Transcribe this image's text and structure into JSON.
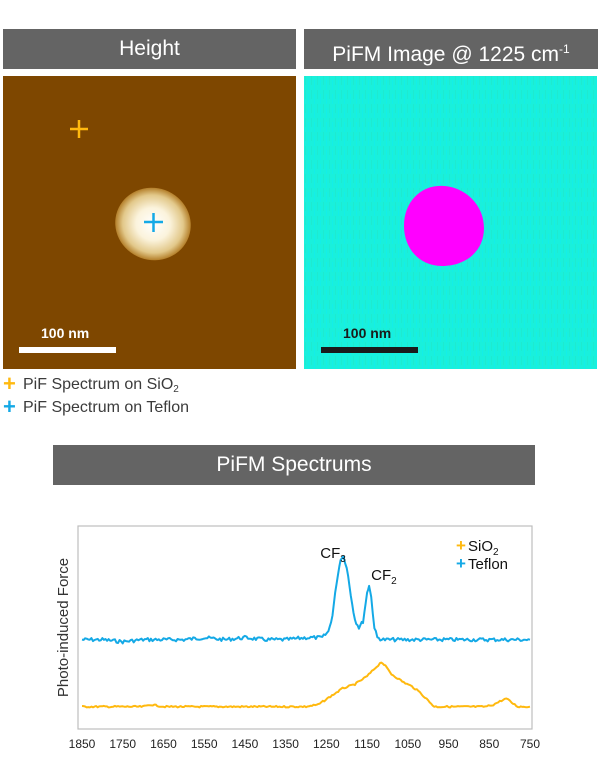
{
  "panels": {
    "height": {
      "title": "Height",
      "scale_label": "100 nm",
      "colors": {
        "background": "#7e4700",
        "feature": "#fffbe6"
      }
    },
    "pifm": {
      "title_main": "PiFM Image @ 1225 cm",
      "title_sup": "-1",
      "scale_label": "100 nm",
      "colors": {
        "background": "#19f0dc",
        "feature": "#ff00ff"
      }
    }
  },
  "markers": [
    {
      "label_main": "PiF Spectrum on SiO",
      "label_sub": "2",
      "color": "#ffb90f",
      "glyph": "+"
    },
    {
      "label_main": "PiF Spectrum on Teflon",
      "label_sub": "",
      "color": "#14a9e6",
      "glyph": "+"
    }
  ],
  "spectrum_header": "PiFM Spectrums",
  "chart_data": {
    "type": "line",
    "title": "PiFM Spectrums",
    "xlabel": "",
    "ylabel": "Photo-induced Force",
    "xlim": [
      1850,
      750
    ],
    "x_reversed": true,
    "ylim": [
      0,
      1
    ],
    "x_ticks": [
      1850,
      1750,
      1650,
      1550,
      1450,
      1350,
      1250,
      1150,
      1050,
      950,
      850,
      750
    ],
    "grid": false,
    "legend": {
      "placement": "top-right",
      "entries": [
        {
          "name_main": "SiO",
          "name_sub": "2",
          "color": "#ffb90f"
        },
        {
          "name_main": "Teflon",
          "name_sub": "",
          "color": "#14a9e6"
        }
      ]
    },
    "annotations": [
      {
        "text_main": "CF",
        "text_sub": "3",
        "x": 1211
      },
      {
        "text_main": "CF",
        "text_sub": "2",
        "x": 1145
      }
    ],
    "series": [
      {
        "name": "Teflon",
        "color": "#14a9e6",
        "points": [
          [
            1850,
            0.44
          ],
          [
            1800,
            0.44
          ],
          [
            1750,
            0.43
          ],
          [
            1700,
            0.44
          ],
          [
            1650,
            0.44
          ],
          [
            1600,
            0.44
          ],
          [
            1550,
            0.45
          ],
          [
            1500,
            0.44
          ],
          [
            1450,
            0.45
          ],
          [
            1400,
            0.44
          ],
          [
            1350,
            0.44
          ],
          [
            1300,
            0.45
          ],
          [
            1260,
            0.45
          ],
          [
            1245,
            0.48
          ],
          [
            1235,
            0.56
          ],
          [
            1225,
            0.72
          ],
          [
            1215,
            0.84
          ],
          [
            1208,
            0.85
          ],
          [
            1200,
            0.8
          ],
          [
            1190,
            0.66
          ],
          [
            1180,
            0.54
          ],
          [
            1170,
            0.5
          ],
          [
            1160,
            0.53
          ],
          [
            1150,
            0.67
          ],
          [
            1145,
            0.71
          ],
          [
            1140,
            0.65
          ],
          [
            1132,
            0.5
          ],
          [
            1125,
            0.45
          ],
          [
            1110,
            0.44
          ],
          [
            1050,
            0.44
          ],
          [
            1000,
            0.44
          ],
          [
            950,
            0.44
          ],
          [
            900,
            0.44
          ],
          [
            850,
            0.44
          ],
          [
            800,
            0.44
          ],
          [
            750,
            0.44
          ]
        ]
      },
      {
        "name": "SiO2",
        "color": "#ffb90f",
        "points": [
          [
            1850,
            0.11
          ],
          [
            1800,
            0.11
          ],
          [
            1750,
            0.11
          ],
          [
            1700,
            0.11
          ],
          [
            1680,
            0.12
          ],
          [
            1650,
            0.11
          ],
          [
            1600,
            0.11
          ],
          [
            1550,
            0.11
          ],
          [
            1500,
            0.11
          ],
          [
            1450,
            0.11
          ],
          [
            1400,
            0.11
          ],
          [
            1350,
            0.11
          ],
          [
            1300,
            0.11
          ],
          [
            1270,
            0.12
          ],
          [
            1240,
            0.16
          ],
          [
            1210,
            0.2
          ],
          [
            1180,
            0.22
          ],
          [
            1150,
            0.26
          ],
          [
            1130,
            0.3
          ],
          [
            1115,
            0.33
          ],
          [
            1105,
            0.31
          ],
          [
            1090,
            0.27
          ],
          [
            1060,
            0.23
          ],
          [
            1040,
            0.21
          ],
          [
            1020,
            0.18
          ],
          [
            1000,
            0.14
          ],
          [
            985,
            0.11
          ],
          [
            950,
            0.11
          ],
          [
            900,
            0.11
          ],
          [
            860,
            0.11
          ],
          [
            840,
            0.12
          ],
          [
            820,
            0.14
          ],
          [
            808,
            0.15
          ],
          [
            795,
            0.13
          ],
          [
            780,
            0.11
          ],
          [
            750,
            0.11
          ]
        ]
      }
    ]
  }
}
